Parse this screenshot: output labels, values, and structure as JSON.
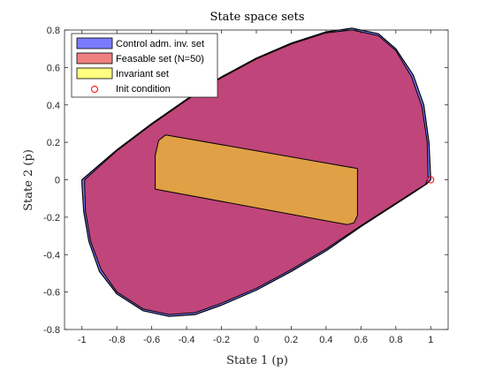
{
  "chart_data": {
    "type": "area",
    "title": "State space sets",
    "xlabel": "State 1 (p)",
    "ylabel": "State 2 (ṗ)",
    "xlim": [
      -1.1,
      1.1
    ],
    "ylim": [
      -0.8,
      0.8
    ],
    "xticks": [
      -1,
      -0.8,
      -0.6,
      -0.4,
      -0.2,
      0,
      0.2,
      0.4,
      0.6,
      0.8,
      1
    ],
    "yticks": [
      -0.8,
      -0.6,
      -0.4,
      -0.2,
      0,
      0.2,
      0.4,
      0.6,
      0.8
    ],
    "xtick_labels": [
      "-1",
      "-0.8",
      "-0.6",
      "-0.4",
      "-0.2",
      "0",
      "0.2",
      "0.4",
      "0.6",
      "0.8",
      "1"
    ],
    "ytick_labels": [
      "-0.8",
      "-0.6",
      "-0.4",
      "-0.2",
      "0",
      "0.2",
      "0.4",
      "0.6",
      "0.8"
    ],
    "grid": false,
    "legend_position": "top-left",
    "series": [
      {
        "name": "Control adm. inv. set",
        "kind": "polygon",
        "color": "#7b7bff",
        "points": [
          [
            -1.0,
            0.0
          ],
          [
            -0.8,
            0.16
          ],
          [
            -0.6,
            0.3
          ],
          [
            -0.4,
            0.43
          ],
          [
            -0.2,
            0.55
          ],
          [
            0.0,
            0.65
          ],
          [
            0.2,
            0.73
          ],
          [
            0.4,
            0.79
          ],
          [
            0.55,
            0.81
          ],
          [
            0.7,
            0.78
          ],
          [
            0.8,
            0.7
          ],
          [
            0.9,
            0.56
          ],
          [
            0.96,
            0.4
          ],
          [
            0.99,
            0.2
          ],
          [
            1.0,
            0.0
          ],
          [
            0.98,
            -0.02
          ],
          [
            0.9,
            -0.07
          ],
          [
            0.8,
            -0.13
          ],
          [
            0.6,
            -0.25
          ],
          [
            0.4,
            -0.38
          ],
          [
            0.2,
            -0.49
          ],
          [
            0.0,
            -0.59
          ],
          [
            -0.2,
            -0.67
          ],
          [
            -0.35,
            -0.72
          ],
          [
            -0.5,
            -0.73
          ],
          [
            -0.65,
            -0.7
          ],
          [
            -0.8,
            -0.61
          ],
          [
            -0.9,
            -0.49
          ],
          [
            -0.96,
            -0.33
          ],
          [
            -0.99,
            -0.17
          ],
          [
            -1.0,
            -0.02
          ]
        ]
      },
      {
        "name": "Feasable set (N=50)",
        "kind": "polygon",
        "color": "#f08080",
        "points": [
          [
            -0.985,
            0.0
          ],
          [
            -0.8,
            0.155
          ],
          [
            -0.6,
            0.295
          ],
          [
            -0.4,
            0.425
          ],
          [
            -0.2,
            0.545
          ],
          [
            0.0,
            0.645
          ],
          [
            0.2,
            0.725
          ],
          [
            0.4,
            0.785
          ],
          [
            0.55,
            0.8
          ],
          [
            0.7,
            0.77
          ],
          [
            0.8,
            0.69
          ],
          [
            0.89,
            0.55
          ],
          [
            0.95,
            0.39
          ],
          [
            0.98,
            0.2
          ],
          [
            0.985,
            0.01
          ],
          [
            0.97,
            -0.025
          ],
          [
            0.9,
            -0.065
          ],
          [
            0.8,
            -0.125
          ],
          [
            0.6,
            -0.245
          ],
          [
            0.4,
            -0.37
          ],
          [
            0.2,
            -0.48
          ],
          [
            0.0,
            -0.58
          ],
          [
            -0.2,
            -0.66
          ],
          [
            -0.35,
            -0.71
          ],
          [
            -0.5,
            -0.72
          ],
          [
            -0.65,
            -0.69
          ],
          [
            -0.8,
            -0.6
          ],
          [
            -0.89,
            -0.48
          ],
          [
            -0.95,
            -0.33
          ],
          [
            -0.98,
            -0.17
          ],
          [
            -0.985,
            -0.02
          ]
        ]
      },
      {
        "name": "Invariant set",
        "kind": "polygon",
        "color": "#ffff80",
        "points": [
          [
            -0.58,
            0.13
          ],
          [
            -0.56,
            0.21
          ],
          [
            -0.52,
            0.24
          ],
          [
            0.58,
            0.06
          ],
          [
            0.58,
            -0.19
          ],
          [
            0.56,
            -0.23
          ],
          [
            0.52,
            -0.24
          ],
          [
            -0.58,
            -0.05
          ]
        ]
      },
      {
        "name": "Init condition",
        "kind": "marker",
        "color": "#ff0000",
        "points": [
          [
            1.0,
            0.0
          ]
        ]
      }
    ]
  }
}
